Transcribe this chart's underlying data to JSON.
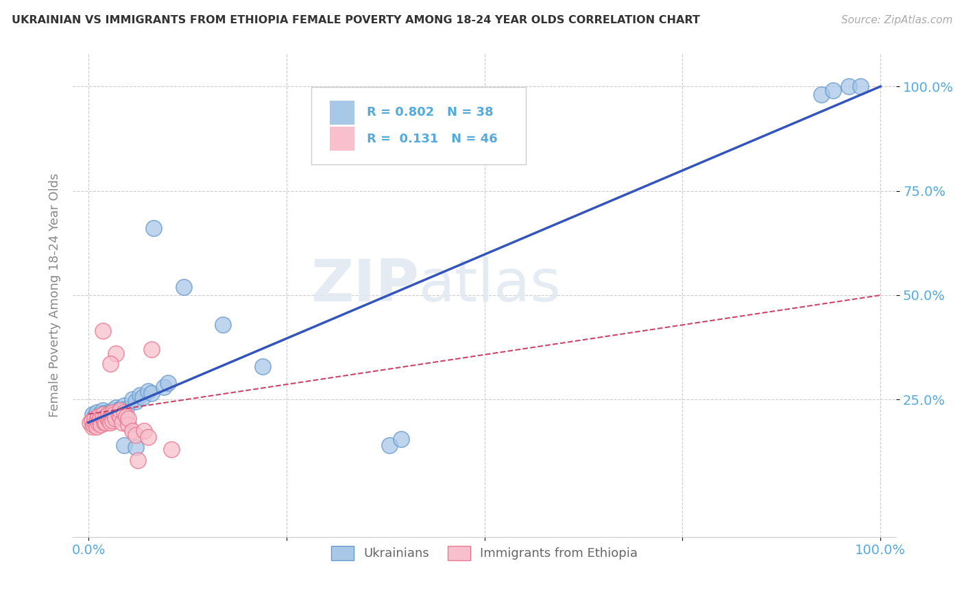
{
  "title": "UKRAINIAN VS IMMIGRANTS FROM ETHIOPIA FEMALE POVERTY AMONG 18-24 YEAR OLDS CORRELATION CHART",
  "source_text": "Source: ZipAtlas.com",
  "ylabel": "Female Poverty Among 18-24 Year Olds",
  "watermark_zip": "ZIP",
  "watermark_atlas": "atlas",
  "legend_r1": "R = 0.802",
  "legend_n1": "N = 38",
  "legend_r2": "R =  0.131",
  "legend_n2": "N = 46",
  "blue_color": "#a8c8e8",
  "blue_edge": "#6699cc",
  "pink_color": "#f8c0cc",
  "pink_edge": "#e87890",
  "trend_blue": "#3355bb",
  "trend_pink": "#cc4466",
  "tick_color": "#55aadd",
  "ylabel_color": "#888888",
  "xlim": [
    -0.01,
    1.01
  ],
  "ylim": [
    -0.05,
    1.05
  ],
  "blue_trend_x0": 0.0,
  "blue_trend_y0": 0.195,
  "blue_trend_x1": 1.0,
  "blue_trend_y1": 1.0,
  "pink_trend_x0": 0.0,
  "pink_trend_y0": 0.215,
  "pink_trend_x1": 1.0,
  "pink_trend_y1": 0.5,
  "figsize": [
    14.06,
    8.92
  ],
  "dpi": 100
}
